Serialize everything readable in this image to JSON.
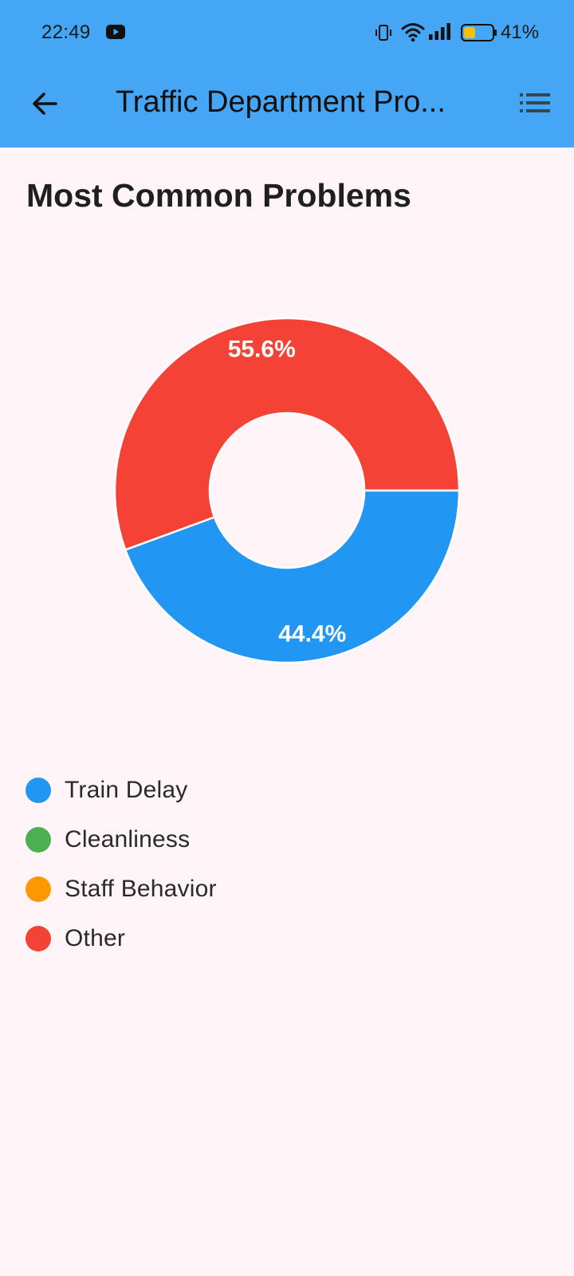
{
  "status_bar": {
    "time": "22:49",
    "battery_percent": "41%",
    "battery_level": 0.41
  },
  "app_bar": {
    "title": "Traffic Department Pro...",
    "back_icon": "arrow-back-icon",
    "menu_icon": "list-icon"
  },
  "section": {
    "title": "Most Common Problems"
  },
  "chart_data": {
    "type": "pie",
    "donut": true,
    "slices": [
      {
        "label": "Train Delay",
        "value": 44.4,
        "display": "44.4%",
        "color": "#2196f3"
      },
      {
        "label": "Cleanliness",
        "value": 0,
        "display": "",
        "color": "#4caf50"
      },
      {
        "label": "Staff Behavior",
        "value": 0,
        "display": "",
        "color": "#ff9800"
      },
      {
        "label": "Other",
        "value": 55.6,
        "display": "55.6%",
        "color": "#f44336"
      }
    ],
    "legend_position": "bottom-left"
  },
  "legend": [
    {
      "label": "Train Delay",
      "color": "#2196f3"
    },
    {
      "label": "Cleanliness",
      "color": "#4caf50"
    },
    {
      "label": "Staff Behavior",
      "color": "#ff9800"
    },
    {
      "label": "Other",
      "color": "#f44336"
    }
  ],
  "colors": {
    "app_bar": "#45a6f6",
    "background": "#fff5f9"
  }
}
